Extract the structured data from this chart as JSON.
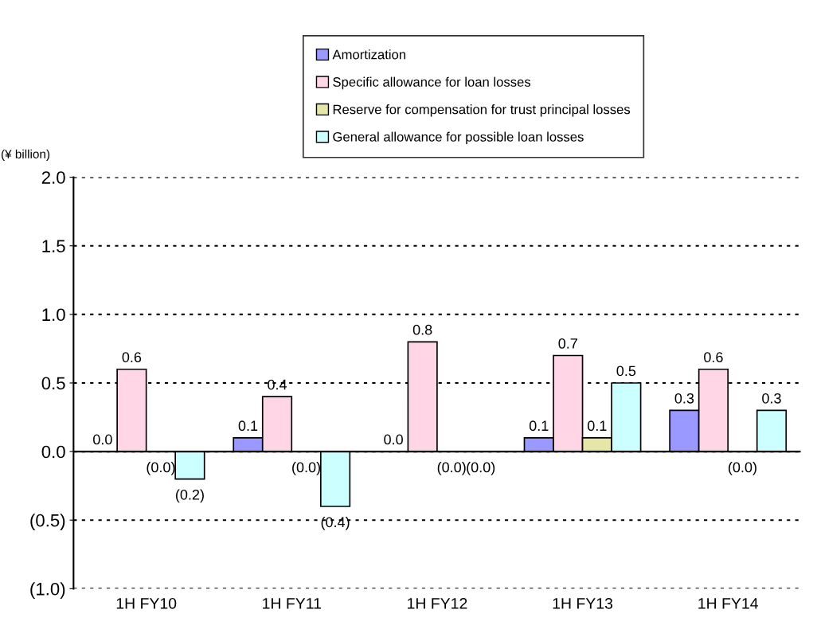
{
  "chart_data": {
    "type": "bar",
    "ylabel": "(¥ billion)",
    "categories": [
      "1H FY10",
      "1H FY11",
      "1H FY12",
      "1H FY13",
      "1H FY14"
    ],
    "series": [
      {
        "name": "Amortization",
        "color": "#9999ff",
        "values": [
          0.0,
          0.1,
          0.0,
          0.1,
          0.3
        ],
        "value_labels": [
          "0.0",
          "0.1",
          "0.0",
          "0.1",
          "0.3"
        ]
      },
      {
        "name": "Specific allowance for loan losses",
        "color": "#ffd6e6",
        "values": [
          0.6,
          0.4,
          0.8,
          0.7,
          0.6
        ],
        "value_labels": [
          "0.6",
          "0.4",
          "0.8",
          "0.7",
          "0.6"
        ]
      },
      {
        "name": "Reserve for compensation for trust principal losses",
        "color": "#e6e6a8",
        "values": [
          0.0,
          0.0,
          0.0,
          0.1,
          0.0
        ],
        "value_labels": [
          "(0.0)",
          "(0.0)",
          "(0.0)",
          "0.1",
          "(0.0)"
        ]
      },
      {
        "name": "General allowance for possible loan losses",
        "color": "#ccffff",
        "values": [
          -0.2,
          -0.4,
          0.0,
          0.5,
          0.3
        ],
        "value_labels": [
          "(0.2)",
          "(0.4)",
          "(0.0)",
          "0.5",
          "0.3"
        ]
      }
    ],
    "ylim": [
      -1.0,
      2.0
    ],
    "yticks": [
      {
        "value": -1.0,
        "label": "(1.0)"
      },
      {
        "value": -0.5,
        "label": "(0.5)"
      },
      {
        "value": 0,
        "label": "0.0"
      },
      0.5,
      {
        "value": 1,
        "label": "1.0"
      },
      1.5,
      {
        "value": 2,
        "label": "2.0"
      }
    ],
    "grid": "y",
    "legend": "top"
  }
}
